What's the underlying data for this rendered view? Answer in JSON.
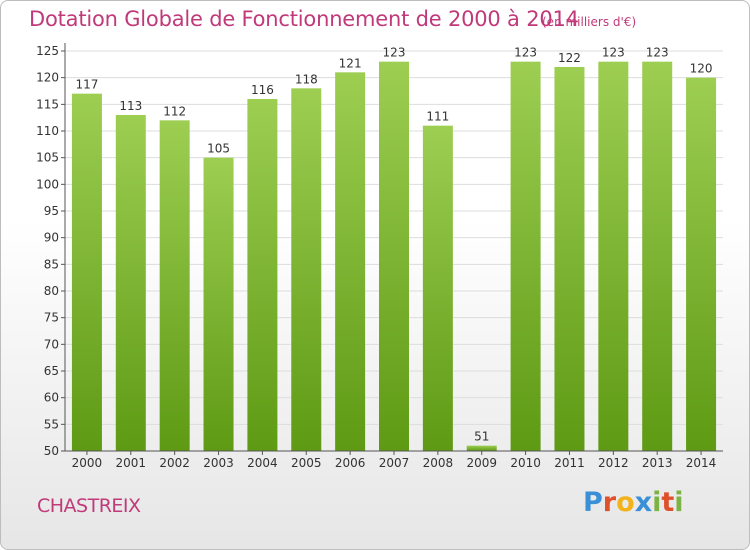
{
  "title": "Dotation Globale de Fonctionnement de 2000 à 2014",
  "subtitle": "(en milliers d'€)",
  "commune": "CHASTREIX",
  "logo": {
    "letters": [
      "P",
      "r",
      "o",
      "x",
      "i",
      "t",
      "i"
    ],
    "colors": [
      "#3a8fd6",
      "#e0512b",
      "#f2b21b",
      "#3a8fd6",
      "#7cb342",
      "#e0512b",
      "#7cb342"
    ]
  },
  "colors": {
    "bar_top": "#9dce52",
    "bar_bottom": "#5e9a14",
    "axis": "#555555",
    "grid": "#dddddd"
  },
  "chart_data": {
    "type": "bar",
    "categories": [
      "2000",
      "2001",
      "2002",
      "2003",
      "2004",
      "2005",
      "2006",
      "2007",
      "2008",
      "2009",
      "2010",
      "2011",
      "2012",
      "2013",
      "2014"
    ],
    "values": [
      117,
      113,
      112,
      105,
      116,
      118,
      121,
      123,
      111,
      51,
      123,
      122,
      123,
      123,
      120
    ],
    "ylim": [
      50,
      125
    ],
    "yticks": [
      50,
      55,
      60,
      65,
      70,
      75,
      80,
      85,
      90,
      95,
      100,
      105,
      110,
      115,
      120,
      125
    ],
    "grid": true,
    "data_labels": true
  }
}
